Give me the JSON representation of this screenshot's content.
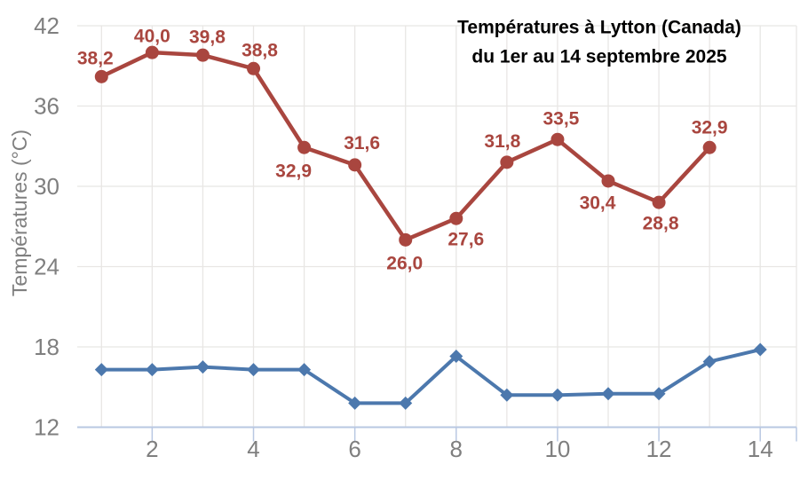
{
  "chart_data": {
    "type": "line",
    "title_line1": "Températures à Lytton (Canada)",
    "title_line2": "du 1er au 14 septembre 2025",
    "ylabel": "Températures (°C)",
    "xlim": [
      0.5,
      14.7
    ],
    "ylim": [
      12,
      42
    ],
    "grid": true,
    "legend": "none",
    "y_ticks": [
      12,
      18,
      24,
      30,
      36,
      42
    ],
    "y_tick_labels": [
      "12",
      "18",
      "24",
      "30",
      "36",
      "42"
    ],
    "x_gridlines": [
      1,
      2,
      3,
      4,
      5,
      6,
      7,
      8,
      9,
      10,
      11,
      12,
      13,
      14
    ],
    "x_ticks": [
      2,
      4,
      6,
      8,
      10,
      12,
      14
    ],
    "x_tick_labels": [
      "2",
      "4",
      "6",
      "8",
      "10",
      "12",
      "14"
    ],
    "series": [
      {
        "id": "red-upper-series",
        "color": "#A9463F",
        "marker": "circle",
        "x": [
          1,
          2,
          3,
          4,
          5,
          6,
          7,
          8,
          9,
          10,
          11,
          12,
          13
        ],
        "values": [
          38.2,
          40.0,
          39.8,
          38.8,
          32.9,
          31.6,
          26.0,
          27.6,
          31.8,
          33.5,
          30.4,
          28.8,
          32.9
        ],
        "point_labels": [
          "38,2",
          "40,0",
          "39,8",
          "38,8",
          "32,9",
          "31,6",
          "26,0",
          "27,6",
          "31,8",
          "33,5",
          "30,4",
          "28,8",
          "32,9"
        ],
        "label_offsets": [
          [
            -7,
            -21
          ],
          [
            0,
            -19
          ],
          [
            5,
            -21
          ],
          [
            7,
            -21
          ],
          [
            -12,
            26
          ],
          [
            8,
            -25
          ],
          [
            -1,
            26
          ],
          [
            11,
            23
          ],
          [
            -5,
            -24
          ],
          [
            4,
            -24
          ],
          [
            -12,
            24
          ],
          [
            2,
            23
          ],
          [
            0,
            -23
          ]
        ]
      },
      {
        "id": "blue-lower-series",
        "color": "#4C78AD",
        "marker": "diamond",
        "x": [
          1,
          2,
          3,
          4,
          5,
          6,
          7,
          8,
          9,
          10,
          11,
          12,
          13,
          14
        ],
        "values": [
          16.3,
          16.3,
          16.5,
          16.3,
          16.3,
          13.8,
          13.8,
          17.3,
          14.4,
          14.4,
          14.5,
          14.5,
          16.9,
          17.8
        ],
        "point_labels": []
      }
    ],
    "colors": {
      "gridline": "#E8E6E4",
      "axis_line": "#B9C8E2",
      "tick_text": "#7F7F7F",
      "title_text": "#000000",
      "background": "#FFFFFF"
    }
  }
}
